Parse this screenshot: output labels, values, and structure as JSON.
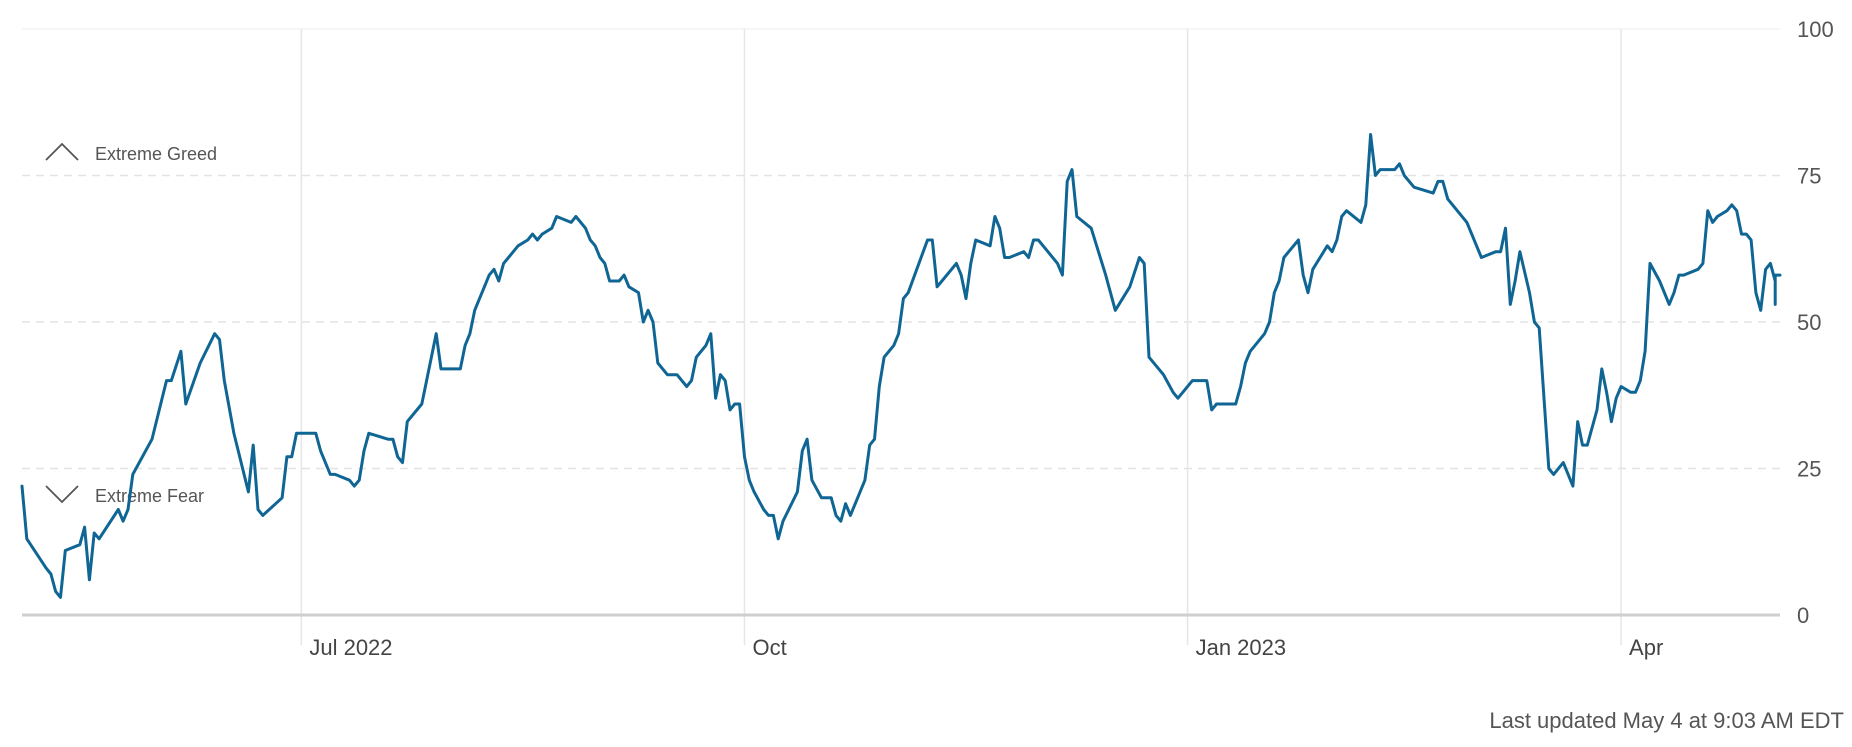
{
  "chart_data": {
    "type": "line",
    "ylim": [
      0,
      100
    ],
    "yticks": [
      0,
      25,
      50,
      75,
      100
    ],
    "xticks": [
      {
        "label": "Jul 2022",
        "date": "2022-07-01"
      },
      {
        "label": "Oct",
        "date": "2022-10-01"
      },
      {
        "label": "Jan 2023",
        "date": "2023-01-01"
      },
      {
        "label": "Apr",
        "date": "2023-04-01"
      }
    ],
    "xlim": [
      "2022-05-04",
      "2023-05-04"
    ],
    "grid": true,
    "zones": [
      {
        "label": "Extreme Greed",
        "icon": "chevron-up-icon"
      },
      {
        "label": "Extreme Fear",
        "icon": "chevron-down-icon"
      }
    ],
    "series": [
      {
        "color": "#0f6694",
        "points": [
          [
            "2022-05-04",
            22
          ],
          [
            "2022-05-05",
            13
          ],
          [
            "2022-05-09",
            8
          ],
          [
            "2022-05-10",
            7
          ],
          [
            "2022-05-11",
            4
          ],
          [
            "2022-05-12",
            3
          ],
          [
            "2022-05-13",
            11
          ],
          [
            "2022-05-16",
            12
          ],
          [
            "2022-05-17",
            15
          ],
          [
            "2022-05-18",
            6
          ],
          [
            "2022-05-19",
            14
          ],
          [
            "2022-05-20",
            13
          ],
          [
            "2022-05-24",
            18
          ],
          [
            "2022-05-25",
            16
          ],
          [
            "2022-05-26",
            18
          ],
          [
            "2022-05-27",
            24
          ],
          [
            "2022-05-31",
            30
          ],
          [
            "2022-06-03",
            40
          ],
          [
            "2022-06-04",
            40
          ],
          [
            "2022-06-06",
            45
          ],
          [
            "2022-06-07",
            36
          ],
          [
            "2022-06-10",
            43
          ],
          [
            "2022-06-13",
            48
          ],
          [
            "2022-06-14",
            47
          ],
          [
            "2022-06-15",
            40
          ],
          [
            "2022-06-17",
            31
          ],
          [
            "2022-06-20",
            21
          ],
          [
            "2022-06-21",
            29
          ],
          [
            "2022-06-22",
            18
          ],
          [
            "2022-06-23",
            17
          ],
          [
            "2022-06-27",
            20
          ],
          [
            "2022-06-28",
            27
          ],
          [
            "2022-06-29",
            27
          ],
          [
            "2022-06-30",
            31
          ],
          [
            "2022-07-04",
            31
          ],
          [
            "2022-07-05",
            28
          ],
          [
            "2022-07-06",
            26
          ],
          [
            "2022-07-07",
            24
          ],
          [
            "2022-07-08",
            24
          ],
          [
            "2022-07-11",
            23
          ],
          [
            "2022-07-12",
            22
          ],
          [
            "2022-07-13",
            23
          ],
          [
            "2022-07-14",
            28
          ],
          [
            "2022-07-15",
            31
          ],
          [
            "2022-07-19",
            30
          ],
          [
            "2022-07-20",
            30
          ],
          [
            "2022-07-21",
            27
          ],
          [
            "2022-07-22",
            26
          ],
          [
            "2022-07-23",
            33
          ],
          [
            "2022-07-26",
            36
          ],
          [
            "2022-07-27",
            40
          ],
          [
            "2022-07-29",
            48
          ],
          [
            "2022-07-30",
            42
          ],
          [
            "2022-08-03",
            42
          ],
          [
            "2022-08-04",
            46
          ],
          [
            "2022-08-05",
            48
          ],
          [
            "2022-08-06",
            52
          ],
          [
            "2022-08-09",
            58
          ],
          [
            "2022-08-10",
            59
          ],
          [
            "2022-08-11",
            57
          ],
          [
            "2022-08-12",
            60
          ],
          [
            "2022-08-13",
            61
          ],
          [
            "2022-08-15",
            63
          ],
          [
            "2022-08-17",
            64
          ],
          [
            "2022-08-18",
            65
          ],
          [
            "2022-08-19",
            64
          ],
          [
            "2022-08-20",
            65
          ],
          [
            "2022-08-22",
            66
          ],
          [
            "2022-08-23",
            68
          ],
          [
            "2022-08-26",
            67
          ],
          [
            "2022-08-27",
            68
          ],
          [
            "2022-08-29",
            66
          ],
          [
            "2022-08-30",
            64
          ],
          [
            "2022-08-31",
            63
          ],
          [
            "2022-09-01",
            61
          ],
          [
            "2022-09-02",
            60
          ],
          [
            "2022-09-03",
            57
          ],
          [
            "2022-09-05",
            57
          ],
          [
            "2022-09-06",
            58
          ],
          [
            "2022-09-07",
            56
          ],
          [
            "2022-09-09",
            55
          ],
          [
            "2022-09-10",
            50
          ],
          [
            "2022-09-11",
            52
          ],
          [
            "2022-09-12",
            50
          ],
          [
            "2022-09-13",
            43
          ],
          [
            "2022-09-15",
            41
          ],
          [
            "2022-09-17",
            41
          ],
          [
            "2022-09-19",
            39
          ],
          [
            "2022-09-20",
            40
          ],
          [
            "2022-09-21",
            44
          ],
          [
            "2022-09-23",
            46
          ],
          [
            "2022-09-24",
            48
          ],
          [
            "2022-09-25",
            37
          ],
          [
            "2022-09-26",
            41
          ],
          [
            "2022-09-27",
            40
          ],
          [
            "2022-09-28",
            35
          ],
          [
            "2022-09-29",
            36
          ],
          [
            "2022-09-30",
            36
          ],
          [
            "2022-10-01",
            27
          ],
          [
            "2022-10-02",
            23
          ],
          [
            "2022-10-03",
            21
          ],
          [
            "2022-10-05",
            18
          ],
          [
            "2022-10-06",
            17
          ],
          [
            "2022-10-07",
            17
          ],
          [
            "2022-10-08",
            13
          ],
          [
            "2022-10-09",
            16
          ],
          [
            "2022-10-12",
            21
          ],
          [
            "2022-10-13",
            28
          ],
          [
            "2022-10-14",
            30
          ],
          [
            "2022-10-15",
            23
          ],
          [
            "2022-10-17",
            20
          ],
          [
            "2022-10-19",
            20
          ],
          [
            "2022-10-20",
            17
          ],
          [
            "2022-10-21",
            16
          ],
          [
            "2022-10-22",
            19
          ],
          [
            "2022-10-23",
            17
          ],
          [
            "2022-10-26",
            23
          ],
          [
            "2022-10-27",
            29
          ],
          [
            "2022-10-28",
            30
          ],
          [
            "2022-10-29",
            39
          ],
          [
            "2022-10-30",
            44
          ],
          [
            "2022-11-01",
            46
          ],
          [
            "2022-11-02",
            48
          ],
          [
            "2022-11-03",
            54
          ],
          [
            "2022-11-04",
            55
          ],
          [
            "2022-11-08",
            64
          ],
          [
            "2022-11-09",
            64
          ],
          [
            "2022-11-10",
            56
          ],
          [
            "2022-11-11",
            57
          ],
          [
            "2022-11-14",
            60
          ],
          [
            "2022-11-15",
            58
          ],
          [
            "2022-11-16",
            54
          ],
          [
            "2022-11-17",
            60
          ],
          [
            "2022-11-18",
            64
          ],
          [
            "2022-11-21",
            63
          ],
          [
            "2022-11-22",
            68
          ],
          [
            "2022-11-23",
            66
          ],
          [
            "2022-11-24",
            61
          ],
          [
            "2022-11-25",
            61
          ],
          [
            "2022-11-28",
            62
          ],
          [
            "2022-11-29",
            61
          ],
          [
            "2022-11-30",
            64
          ],
          [
            "2022-12-01",
            64
          ],
          [
            "2022-12-02",
            63
          ],
          [
            "2022-12-05",
            60
          ],
          [
            "2022-12-06",
            58
          ],
          [
            "2022-12-07",
            74
          ],
          [
            "2022-12-08",
            76
          ],
          [
            "2022-12-09",
            68
          ],
          [
            "2022-12-12",
            66
          ],
          [
            "2022-12-15",
            58
          ],
          [
            "2022-12-17",
            52
          ],
          [
            "2022-12-20",
            56
          ],
          [
            "2022-12-22",
            61
          ],
          [
            "2022-12-23",
            60
          ],
          [
            "2022-12-24",
            44
          ],
          [
            "2022-12-27",
            41
          ],
          [
            "2022-12-29",
            38
          ],
          [
            "2022-12-30",
            37
          ],
          [
            "2022-12-31",
            38
          ],
          [
            "2023-01-02",
            40
          ],
          [
            "2023-01-04",
            40
          ],
          [
            "2023-01-05",
            40
          ],
          [
            "2023-01-06",
            35
          ],
          [
            "2023-01-07",
            36
          ],
          [
            "2023-01-09",
            36
          ],
          [
            "2023-01-10",
            36
          ],
          [
            "2023-01-11",
            36
          ],
          [
            "2023-01-12",
            39
          ],
          [
            "2023-01-13",
            43
          ],
          [
            "2023-01-14",
            45
          ],
          [
            "2023-01-17",
            48
          ],
          [
            "2023-01-18",
            50
          ],
          [
            "2023-01-19",
            55
          ],
          [
            "2023-01-20",
            57
          ],
          [
            "2023-01-21",
            61
          ],
          [
            "2023-01-24",
            64
          ],
          [
            "2023-01-25",
            58
          ],
          [
            "2023-01-26",
            55
          ],
          [
            "2023-01-27",
            59
          ],
          [
            "2023-01-30",
            63
          ],
          [
            "2023-01-31",
            62
          ],
          [
            "2023-02-01",
            64
          ],
          [
            "2023-02-02",
            68
          ],
          [
            "2023-02-03",
            69
          ],
          [
            "2023-02-06",
            67
          ],
          [
            "2023-02-07",
            70
          ],
          [
            "2023-02-08",
            82
          ],
          [
            "2023-02-09",
            75
          ],
          [
            "2023-02-10",
            76
          ],
          [
            "2023-02-11",
            76
          ],
          [
            "2023-02-13",
            76
          ],
          [
            "2023-02-14",
            77
          ],
          [
            "2023-02-15",
            75
          ],
          [
            "2023-02-17",
            73
          ],
          [
            "2023-02-21",
            72
          ],
          [
            "2023-02-22",
            74
          ],
          [
            "2023-02-23",
            74
          ],
          [
            "2023-02-24",
            71
          ],
          [
            "2023-02-28",
            67
          ],
          [
            "2023-03-01",
            65
          ],
          [
            "2023-03-03",
            61
          ],
          [
            "2023-03-06",
            62
          ],
          [
            "2023-03-07",
            62
          ],
          [
            "2023-03-08",
            66
          ],
          [
            "2023-03-09",
            53
          ],
          [
            "2023-03-10",
            57
          ],
          [
            "2023-03-11",
            62
          ],
          [
            "2023-03-13",
            55
          ],
          [
            "2023-03-14",
            50
          ],
          [
            "2023-03-15",
            49
          ],
          [
            "2023-03-17",
            25
          ],
          [
            "2023-03-18",
            24
          ],
          [
            "2023-03-20",
            26
          ],
          [
            "2023-03-22",
            22
          ],
          [
            "2023-03-23",
            33
          ],
          [
            "2023-03-24",
            29
          ],
          [
            "2023-03-25",
            29
          ],
          [
            "2023-03-27",
            35
          ],
          [
            "2023-03-28",
            42
          ],
          [
            "2023-03-29",
            38
          ],
          [
            "2023-03-30",
            33
          ],
          [
            "2023-03-31",
            37
          ],
          [
            "2023-04-01",
            39
          ],
          [
            "2023-04-03",
            38
          ],
          [
            "2023-04-04",
            38
          ],
          [
            "2023-04-05",
            40
          ],
          [
            "2023-04-06",
            45
          ],
          [
            "2023-04-07",
            60
          ],
          [
            "2023-04-09",
            57
          ],
          [
            "2023-04-11",
            53
          ],
          [
            "2023-04-12",
            55
          ],
          [
            "2023-04-13",
            58
          ],
          [
            "2023-04-14",
            58
          ],
          [
            "2023-04-17",
            59
          ],
          [
            "2023-04-18",
            60
          ],
          [
            "2023-04-19",
            69
          ],
          [
            "2023-04-20",
            67
          ],
          [
            "2023-04-21",
            68
          ],
          [
            "2023-04-23",
            69
          ],
          [
            "2023-04-24",
            70
          ],
          [
            "2023-04-25",
            69
          ],
          [
            "2023-04-26",
            65
          ],
          [
            "2023-04-27",
            65
          ],
          [
            "2023-04-28",
            64
          ],
          [
            "2023-04-29",
            55
          ],
          [
            "2023-04-30",
            52
          ],
          [
            "2023-05-01",
            59
          ],
          [
            "2023-05-02",
            60
          ],
          [
            "2023-05-03",
            57
          ],
          [
            "2023-05-03",
            53
          ],
          [
            "2023-05-03",
            58
          ],
          [
            "2023-05-04",
            58
          ]
        ]
      }
    ]
  },
  "footer": {
    "last_updated": "Last updated May 4 at 9:03 AM EDT"
  }
}
